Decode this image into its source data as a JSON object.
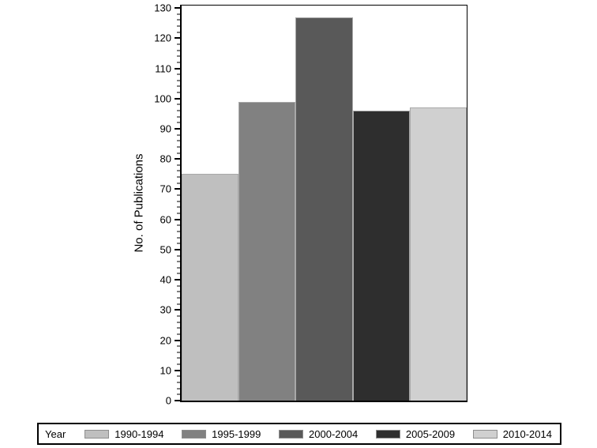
{
  "chart_data": {
    "type": "bar",
    "title": "",
    "xlabel": "",
    "ylabel": "No. of Publications",
    "legend_title": "Year",
    "legend_position": "bottom",
    "grid": "off",
    "categories": [
      "1990-1994",
      "1995-1999",
      "2000-2004",
      "2005-2009",
      "2010-2014"
    ],
    "values": [
      75,
      99,
      127,
      96,
      97
    ],
    "bar_colors": [
      "#bfbfbf",
      "#818181",
      "#595959",
      "#2e2e2e",
      "#d0d0d0"
    ],
    "ylim": [
      0,
      130
    ],
    "y_major_tick_step": 10,
    "y_minor_tick_step": 2,
    "axis_color": "#000000",
    "background_color": "#ffffff"
  }
}
